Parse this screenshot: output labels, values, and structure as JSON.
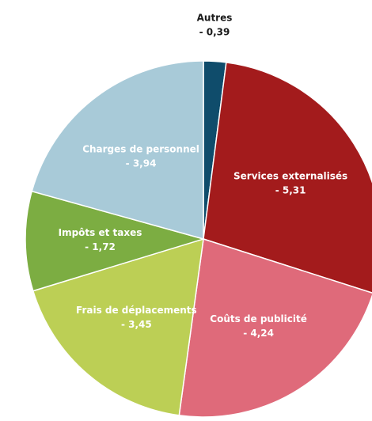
{
  "chart_data": {
    "type": "pie",
    "categories": [
      "Autres",
      "Services externalisés",
      "Coûts de publicité",
      "Frais de déplacements",
      "Impôts et taxes",
      "Charges de personnel"
    ],
    "values": [
      -0.39,
      -5.31,
      -4.24,
      -3.45,
      -1.72,
      -3.94
    ],
    "value_labels": [
      "- 0,39",
      "- 5,31",
      "- 4,24",
      "- 3,45",
      "- 1,72",
      "- 3,94"
    ],
    "colors": [
      "#0f4c6b",
      "#a31b1c",
      "#df6a7a",
      "#bccf55",
      "#7cad42",
      "#a8cad8"
    ]
  }
}
